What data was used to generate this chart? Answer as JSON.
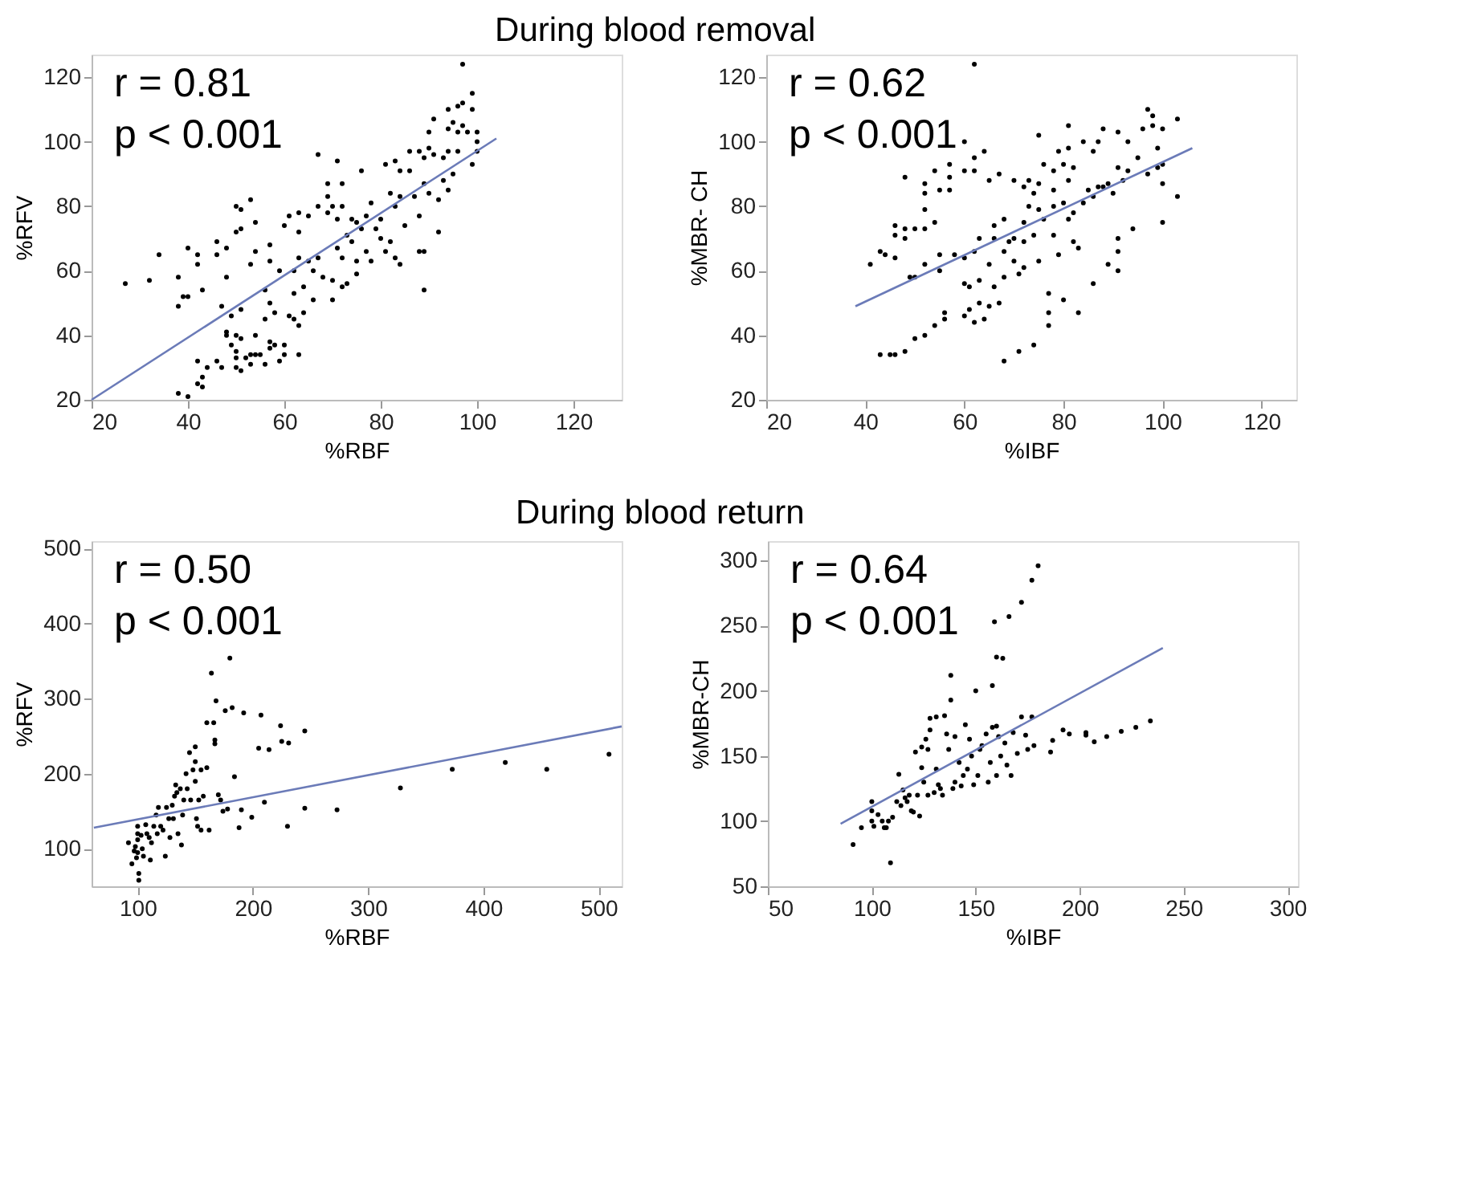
{
  "chart_data": [
    {
      "type": "scatter",
      "title": "During blood removal",
      "xlabel": "%RBF",
      "ylabel": "%RFV",
      "xlim": [
        20,
        130
      ],
      "ylim": [
        20,
        127
      ],
      "xticks": [
        20,
        40,
        60,
        80,
        100,
        120
      ],
      "yticks": [
        20,
        40,
        60,
        80,
        100,
        120
      ],
      "grid": false,
      "marker": "circle",
      "annotations": [
        "r = 0.81",
        "p < 0.001"
      ],
      "series": [
        {
          "color": "#000000",
          "x": [
            27,
            32,
            34,
            38,
            38,
            39,
            40,
            40,
            42,
            42,
            43,
            38,
            40,
            42,
            43,
            43,
            44,
            42,
            46,
            46,
            46,
            47,
            47,
            48,
            48,
            48,
            48,
            49,
            49,
            50,
            50,
            50,
            50,
            50,
            50,
            51,
            51,
            51,
            51,
            51,
            52,
            53,
            53,
            53,
            53,
            54,
            54,
            54,
            54,
            55,
            56,
            56,
            56,
            57,
            57,
            57,
            57,
            57,
            58,
            58,
            59,
            59,
            60,
            60,
            60,
            61,
            61,
            62,
            62,
            62,
            63,
            63,
            63,
            63,
            63,
            64,
            64,
            65,
            65,
            66,
            66,
            67,
            67,
            67,
            68,
            69,
            69,
            69,
            70,
            70,
            70,
            71,
            71,
            71,
            72,
            72,
            72,
            72,
            73,
            73,
            74,
            74,
            75,
            75,
            75,
            76,
            76,
            77,
            77,
            78,
            78,
            79,
            80,
            80,
            81,
            81,
            82,
            82,
            83,
            83,
            83,
            84,
            84,
            84,
            85,
            86,
            86,
            87,
            88,
            88,
            88,
            89,
            89,
            89,
            89,
            90,
            90,
            90,
            91,
            91,
            92,
            92,
            93,
            93,
            94,
            94,
            94,
            94,
            95,
            95,
            96,
            96,
            96,
            97,
            97,
            97,
            98,
            99,
            99,
            99,
            100,
            100,
            100
          ],
          "values": [
            56,
            57,
            65,
            58,
            49,
            52,
            52,
            67,
            65,
            62,
            54,
            22,
            21,
            25,
            24,
            27,
            30,
            32,
            65,
            69,
            32,
            49,
            30,
            67,
            58,
            40,
            41,
            46,
            37,
            72,
            80,
            40,
            35,
            30,
            33,
            79,
            73,
            48,
            29,
            39,
            33,
            82,
            62,
            31,
            34,
            75,
            66,
            40,
            34,
            34,
            54,
            45,
            31,
            68,
            63,
            50,
            38,
            36,
            47,
            37,
            60,
            32,
            74,
            37,
            34,
            77,
            46,
            60,
            53,
            45,
            78,
            72,
            64,
            43,
            34,
            47,
            55,
            77,
            63,
            51,
            60,
            96,
            80,
            64,
            58,
            87,
            83,
            78,
            80,
            57,
            51,
            94,
            76,
            67,
            87,
            80,
            64,
            55,
            71,
            56,
            76,
            69,
            75,
            63,
            59,
            91,
            73,
            77,
            66,
            81,
            63,
            73,
            76,
            70,
            93,
            66,
            84,
            69,
            94,
            80,
            64,
            91,
            83,
            62,
            74,
            97,
            91,
            83,
            97,
            77,
            66,
            95,
            87,
            54,
            66,
            103,
            98,
            84,
            107,
            96,
            82,
            72,
            95,
            88,
            110,
            104,
            97,
            85,
            106,
            90,
            103,
            97,
            111,
            124,
            105,
            112,
            103,
            115,
            110,
            93,
            103,
            97,
            100
          ]
        },
        {
          "type": "line",
          "color": "#6b7bb8",
          "marker": "none",
          "line_style": "solid",
          "x": [
            20,
            104
          ],
          "values": [
            20,
            101
          ]
        }
      ]
    },
    {
      "type": "scatter",
      "xlabel": "%IBF",
      "ylabel": "%MBR- CH",
      "xlim": [
        20,
        127
      ],
      "ylim": [
        20,
        127
      ],
      "xticks": [
        20,
        40,
        60,
        80,
        100,
        120
      ],
      "yticks": [
        20,
        40,
        60,
        80,
        100,
        120
      ],
      "grid": false,
      "marker": "circle",
      "annotations": [
        "r = 0.62",
        "p < 0.001"
      ],
      "series": [
        {
          "color": "#000000",
          "x": [
            41,
            43,
            43,
            44,
            45,
            46,
            46,
            46,
            46,
            48,
            48,
            48,
            48,
            49,
            50,
            50,
            50,
            52,
            52,
            52,
            52,
            52,
            52,
            54,
            54,
            54,
            55,
            55,
            55,
            56,
            56,
            57,
            57,
            57,
            58,
            60,
            60,
            60,
            60,
            60,
            61,
            61,
            62,
            62,
            62,
            62,
            62,
            63,
            63,
            63,
            64,
            64,
            65,
            65,
            65,
            66,
            66,
            66,
            67,
            67,
            68,
            68,
            68,
            68,
            69,
            70,
            70,
            70,
            71,
            71,
            72,
            72,
            72,
            72,
            73,
            73,
            74,
            74,
            74,
            75,
            75,
            75,
            75,
            76,
            76,
            77,
            77,
            77,
            78,
            78,
            78,
            78,
            79,
            79,
            80,
            80,
            80,
            81,
            81,
            81,
            81,
            82,
            82,
            82,
            83,
            83,
            84,
            84,
            85,
            86,
            86,
            86,
            87,
            87,
            88,
            88,
            89,
            89,
            90,
            91,
            91,
            91,
            91,
            91,
            92,
            93,
            93,
            94,
            95,
            96,
            97,
            97,
            98,
            98,
            99,
            99,
            100,
            100,
            100,
            100,
            103,
            103
          ],
          "values": [
            62,
            66,
            34,
            65,
            34,
            71,
            74,
            64,
            34,
            89,
            73,
            70,
            35,
            58,
            73,
            58,
            39,
            87,
            84,
            79,
            73,
            62,
            40,
            75,
            91,
            43,
            85,
            60,
            65,
            47,
            45,
            93,
            89,
            85,
            65,
            100,
            91,
            64,
            56,
            46,
            55,
            48,
            124,
            95,
            91,
            66,
            44,
            57,
            70,
            50,
            97,
            45,
            88,
            62,
            49,
            74,
            70,
            55,
            50,
            90,
            76,
            66,
            58,
            32,
            69,
            88,
            70,
            63,
            59,
            35,
            86,
            75,
            69,
            61,
            88,
            80,
            84,
            71,
            37,
            102,
            87,
            79,
            63,
            93,
            76,
            53,
            47,
            43,
            91,
            85,
            80,
            71,
            97,
            65,
            93,
            81,
            51,
            98,
            88,
            105,
            76,
            92,
            78,
            69,
            67,
            47,
            100,
            81,
            85,
            97,
            83,
            56,
            100,
            86,
            104,
            86,
            62,
            87,
            84,
            103,
            92,
            70,
            66,
            60,
            88,
            100,
            91,
            73,
            95,
            104,
            110,
            90,
            108,
            105,
            98,
            92,
            104,
            93,
            87,
            75,
            107,
            83
          ]
        },
        {
          "type": "line",
          "color": "#6b7bb8",
          "marker": "none",
          "line_style": "solid",
          "x": [
            38,
            106
          ],
          "values": [
            49,
            98
          ]
        }
      ]
    },
    {
      "type": "scatter",
      "title": "During blood return",
      "xlabel": "%RBF",
      "ylabel": "%RFV",
      "xlim": [
        60,
        520
      ],
      "ylim": [
        50,
        510
      ],
      "xticks": [
        100,
        200,
        300,
        400,
        500
      ],
      "yticks": [
        100,
        200,
        300,
        400,
        500
      ],
      "grid": false,
      "marker": "circle",
      "annotations": [
        "r = 0.50",
        "p < 0.001"
      ],
      "series": [
        {
          "color": "#000000",
          "x": [
            92,
            95,
            97,
            98,
            99,
            100,
            100,
            100,
            100,
            101,
            101,
            103,
            104,
            105,
            107,
            108,
            110,
            111,
            112,
            114,
            116,
            117,
            118,
            120,
            122,
            124,
            125,
            127,
            128,
            130,
            131,
            132,
            133,
            134,
            135,
            137,
            138,
            139,
            140,
            142,
            143,
            145,
            146,
            148,
            150,
            150,
            150,
            151,
            152,
            153,
            155,
            155,
            157,
            160,
            160,
            162,
            164,
            166,
            167,
            167,
            168,
            170,
            172,
            174,
            176,
            178,
            180,
            182,
            184,
            188,
            190,
            192,
            199,
            205,
            207,
            210,
            214,
            224,
            225,
            230,
            231,
            245,
            245,
            273,
            328,
            373,
            419,
            455,
            509
          ],
          "values": [
            108,
            80,
            97,
            103,
            88,
            130,
            120,
            112,
            95,
            67,
            58,
            118,
            100,
            90,
            132,
            120,
            115,
            85,
            108,
            130,
            145,
            120,
            155,
            130,
            125,
            90,
            155,
            140,
            115,
            158,
            140,
            170,
            185,
            175,
            120,
            180,
            105,
            145,
            165,
            200,
            180,
            228,
            165,
            205,
            236,
            216,
            190,
            140,
            130,
            165,
            205,
            125,
            170,
            268,
            208,
            125,
            334,
            268,
            245,
            240,
            297,
            172,
            165,
            150,
            284,
            153,
            354,
            288,
            196,
            128,
            152,
            281,
            142,
            234,
            278,
            162,
            232,
            264,
            243,
            130,
            241,
            257,
            154,
            152,
            181,
            206,
            215,
            206,
            226
          ]
        },
        {
          "type": "line",
          "color": "#6b7bb8",
          "marker": "none",
          "line_style": "solid",
          "x": [
            62,
            520
          ],
          "values": [
            128,
            263
          ]
        }
      ]
    },
    {
      "type": "scatter",
      "xlabel": "%IBF",
      "ylabel": "%MBR-CH",
      "xlim": [
        50,
        305
      ],
      "ylim": [
        50,
        315
      ],
      "xticks": [
        50,
        100,
        150,
        200,
        250,
        300
      ],
      "yticks": [
        50,
        100,
        150,
        200,
        250,
        300
      ],
      "grid": false,
      "marker": "circle",
      "annotations": [
        "r = 0.64",
        "p < 0.001"
      ],
      "series": [
        {
          "color": "#000000",
          "x": [
            91,
            95,
            100,
            100,
            100,
            101,
            103,
            105,
            106,
            107,
            108,
            109,
            110,
            112,
            113,
            114,
            115,
            116,
            117,
            118,
            119,
            120,
            121,
            122,
            123,
            124,
            124,
            125,
            126,
            127,
            127,
            128,
            128,
            130,
            131,
            131,
            132,
            133,
            134,
            135,
            136,
            137,
            138,
            138,
            139,
            140,
            140,
            142,
            143,
            144,
            145,
            146,
            147,
            148,
            149,
            150,
            151,
            152,
            153,
            155,
            156,
            157,
            158,
            158,
            159,
            160,
            160,
            160,
            161,
            162,
            163,
            164,
            165,
            166,
            167,
            168,
            170,
            172,
            172,
            174,
            175,
            177,
            177,
            178,
            180,
            186,
            187,
            192,
            195,
            203,
            203,
            207,
            213,
            220,
            227,
            234
          ],
          "values": [
            82,
            95,
            115,
            108,
            100,
            96,
            105,
            100,
            95,
            95,
            100,
            68,
            103,
            115,
            136,
            112,
            124,
            118,
            115,
            120,
            108,
            107,
            153,
            120,
            104,
            157,
            141,
            130,
            163,
            155,
            120,
            179,
            170,
            122,
            180,
            140,
            128,
            125,
            120,
            181,
            167,
            155,
            212,
            193,
            125,
            165,
            130,
            145,
            127,
            135,
            174,
            140,
            163,
            150,
            128,
            200,
            135,
            155,
            158,
            167,
            130,
            145,
            204,
            172,
            253,
            226,
            173,
            135,
            165,
            150,
            225,
            160,
            143,
            257,
            135,
            168,
            152,
            268,
            180,
            166,
            155,
            285,
            180,
            158,
            296,
            153,
            162,
            170,
            167,
            166,
            168,
            161,
            165,
            169,
            172,
            177
          ]
        },
        {
          "type": "line",
          "color": "#6b7bb8",
          "marker": "none",
          "line_style": "solid",
          "x": [
            85,
            240
          ],
          "values": [
            98,
            233
          ]
        }
      ]
    }
  ]
}
